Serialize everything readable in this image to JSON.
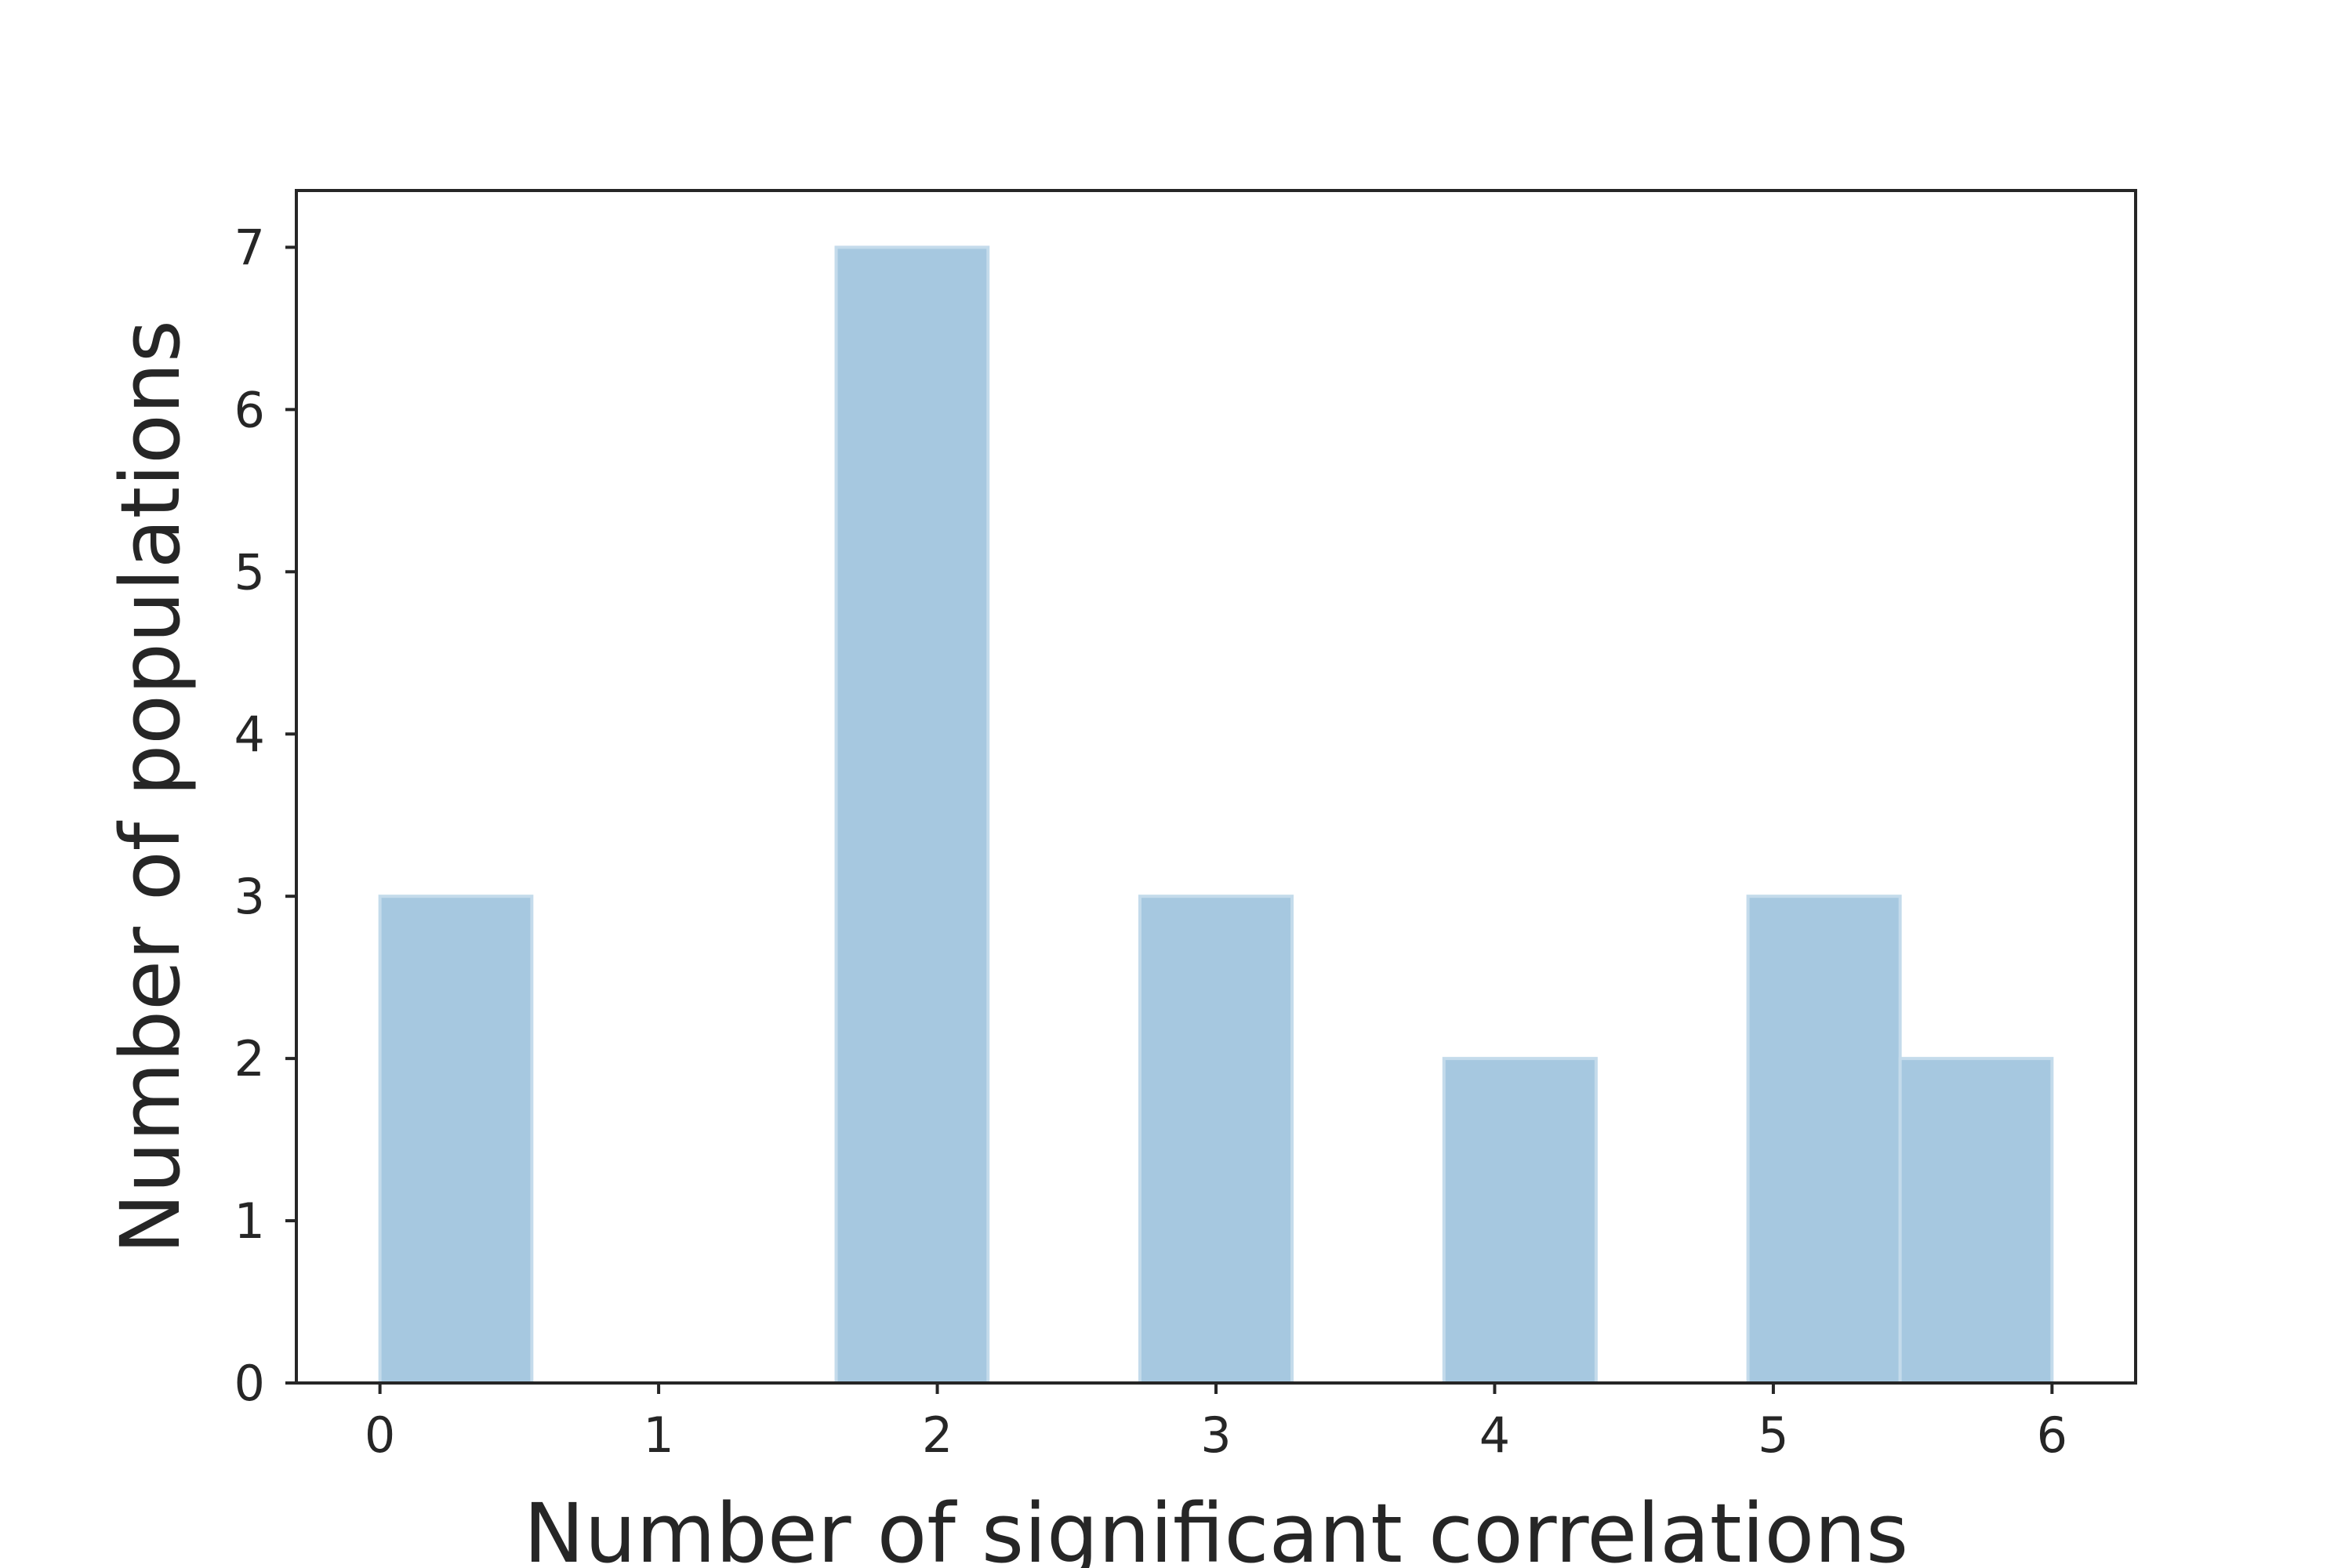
{
  "chart_data": {
    "type": "bar",
    "subtype": "histogram",
    "title": "",
    "xlabel": "Number of significant correlations",
    "ylabel": "Number of populations",
    "xlim": [
      -0.3,
      6.3
    ],
    "ylim": [
      0,
      7.35
    ],
    "xticks": [
      0,
      1,
      2,
      3,
      4,
      5,
      6
    ],
    "yticks": [
      0,
      1,
      2,
      3,
      4,
      5,
      6,
      7
    ],
    "bins": [
      {
        "x0": 0.0,
        "x1": 0.545,
        "value": 3
      },
      {
        "x0": 1.637,
        "x1": 2.182,
        "value": 7
      },
      {
        "x0": 2.727,
        "x1": 3.273,
        "value": 3
      },
      {
        "x0": 3.818,
        "x1": 4.364,
        "value": 2
      },
      {
        "x0": 4.909,
        "x1": 5.455,
        "value": 3
      },
      {
        "x0": 5.455,
        "x1": 6.0,
        "value": 2
      }
    ],
    "bar_color": "#a6c8e0",
    "bar_edge_color": "#c4dbeb",
    "grid": false,
    "legend": "none"
  }
}
